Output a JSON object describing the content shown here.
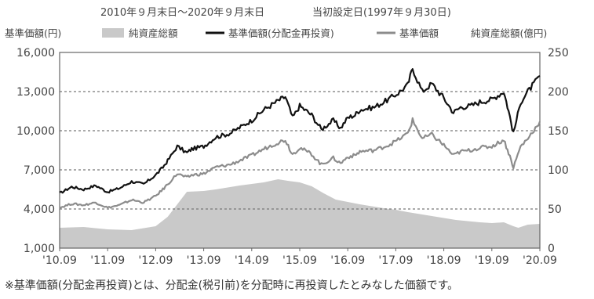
{
  "header": {
    "period": "2010年９月末日～2020年９月末日",
    "inception": "当初設定日(1997年９月30日)"
  },
  "axis_titles": {
    "left": "基準価額(円)",
    "right": "純資産総額(億円)"
  },
  "legend": {
    "net_assets": "純資産総額",
    "nav_reinvested": "基準価額(分配金再投資)",
    "nav": "基準価額"
  },
  "footnote": "※基準価額(分配金再投資)とは、分配金(税引前)を分配時に再投資したとみなした価額です。",
  "colors": {
    "nav_reinvested": "#111111",
    "nav": "#8c8c8c",
    "net_assets": "#c9c9c9",
    "gridline": "#777777"
  },
  "chart_data": {
    "type": "line",
    "x_tick_labels": [
      "'10.09",
      "'11.09",
      "'12.09",
      "'13.09",
      "'14.09",
      "'15.09",
      "'16.09",
      "'17.09",
      "'18.09",
      "'19.09",
      "'20.09"
    ],
    "y_left": {
      "label": "基準価額(円)",
      "ticks": [
        "1,000",
        "4,000",
        "7,000",
        "10,000",
        "13,000",
        "16,000"
      ],
      "range": [
        1000,
        16000
      ]
    },
    "y_right": {
      "label": "純資産総額(億円)",
      "ticks": [
        "0",
        "50",
        "100",
        "150",
        "200",
        "250"
      ],
      "range": [
        0,
        250
      ]
    },
    "grid": "horizontal-dashed",
    "series": [
      {
        "name": "基準価額(分配金再投資)",
        "axis": "left",
        "style": "line",
        "x": [
          2010.75,
          2011.0,
          2011.25,
          2011.5,
          2011.75,
          2012.0,
          2012.25,
          2012.5,
          2012.75,
          2012.9,
          2013.0,
          2013.2,
          2013.4,
          2013.5,
          2013.75,
          2014.0,
          2014.3,
          2014.75,
          2015.0,
          2015.3,
          2015.45,
          2015.6,
          2015.75,
          2016.0,
          2016.2,
          2016.45,
          2016.6,
          2016.75,
          2016.9,
          2017.0,
          2017.3,
          2017.6,
          2017.8,
          2018.0,
          2018.1,
          2018.3,
          2018.5,
          2018.75,
          2018.95,
          2019.1,
          2019.3,
          2019.5,
          2019.75,
          2020.0,
          2020.1,
          2020.2,
          2020.35,
          2020.5,
          2020.75
        ],
        "values": [
          5200,
          5700,
          5500,
          5800,
          5300,
          5600,
          6100,
          5900,
          6600,
          7200,
          7700,
          8800,
          8300,
          8600,
          8800,
          9500,
          9800,
          10800,
          11600,
          12300,
          12600,
          11000,
          11900,
          11200,
          10100,
          10800,
          10200,
          11000,
          11200,
          11600,
          11800,
          12400,
          12900,
          13500,
          14800,
          13000,
          13600,
          12500,
          11400,
          11800,
          11900,
          12200,
          12400,
          13000,
          11500,
          9800,
          12200,
          13000,
          14200
        ]
      },
      {
        "name": "基準価額",
        "axis": "left",
        "style": "line",
        "x": [
          2010.75,
          2011.0,
          2011.25,
          2011.5,
          2011.75,
          2012.0,
          2012.25,
          2012.5,
          2012.75,
          2012.9,
          2013.0,
          2013.2,
          2013.4,
          2013.5,
          2013.75,
          2014.0,
          2014.3,
          2014.75,
          2015.0,
          2015.3,
          2015.45,
          2015.6,
          2015.75,
          2016.0,
          2016.2,
          2016.45,
          2016.6,
          2016.75,
          2016.9,
          2017.0,
          2017.3,
          2017.6,
          2017.8,
          2018.0,
          2018.1,
          2018.3,
          2018.5,
          2018.75,
          2018.95,
          2019.1,
          2019.3,
          2019.5,
          2019.75,
          2020.0,
          2020.1,
          2020.2,
          2020.35,
          2020.5,
          2020.75
        ],
        "values": [
          4100,
          4400,
          4300,
          4500,
          4100,
          4300,
          4700,
          4500,
          5000,
          5500,
          5900,
          6700,
          6400,
          6600,
          6700,
          7200,
          7400,
          8100,
          8600,
          9100,
          9300,
          8200,
          8700,
          8200,
          7400,
          7900,
          7500,
          8000,
          8100,
          8400,
          8500,
          8900,
          9300,
          9800,
          10800,
          9400,
          9700,
          8900,
          8100,
          8400,
          8500,
          8700,
          8800,
          9300,
          8300,
          7200,
          8800,
          9400,
          10700
        ]
      },
      {
        "name": "純資産総額",
        "axis": "right",
        "style": "area",
        "x": [
          2010.75,
          2011.25,
          2011.75,
          2012.25,
          2012.75,
          2013.0,
          2013.25,
          2013.4,
          2013.75,
          2014.0,
          2014.5,
          2014.75,
          2015.0,
          2015.3,
          2015.5,
          2015.75,
          2016.0,
          2016.25,
          2016.5,
          2017.0,
          2017.5,
          2017.75,
          2018.0,
          2018.5,
          2019.0,
          2019.5,
          2019.75,
          2020.0,
          2020.2,
          2020.3,
          2020.5,
          2020.75
        ],
        "values": [
          26,
          27,
          24,
          23,
          28,
          40,
          60,
          72,
          73,
          75,
          80,
          82,
          84,
          88,
          86,
          84,
          79,
          70,
          62,
          56,
          51,
          49,
          46,
          41,
          36,
          33,
          32,
          33,
          28,
          26,
          30,
          31
        ]
      }
    ]
  }
}
